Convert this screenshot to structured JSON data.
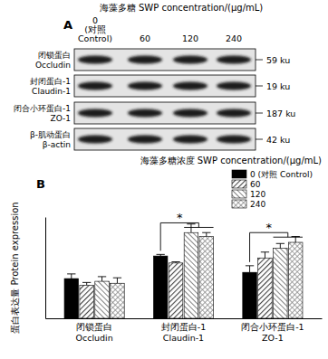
{
  "blot": {
    "panel_label": "A",
    "title": "海藻多糖 SWP concentration/(μg/mL)",
    "lanes": [
      [
        "0",
        "(对照",
        "Control)"
      ],
      [
        "60"
      ],
      [
        "120"
      ],
      [
        "240"
      ]
    ],
    "rows": [
      {
        "label": [
          "闭锁蛋白",
          "Occludin"
        ],
        "size": "59 ku"
      },
      {
        "label": [
          "封闭蛋白-1",
          "Claudin-1"
        ],
        "size": "19 ku"
      },
      {
        "label": [
          "闭合小环蛋白-1",
          "ZO-1"
        ],
        "size": "187 ku"
      },
      {
        "label": [
          "β-肌动蛋白",
          "β-actin"
        ],
        "size": "42 ku"
      }
    ]
  },
  "chart_data": {
    "type": "bar",
    "panel_label": "B",
    "y_label": "蛋白表达量 Protein expression",
    "legend_title": "海藻多糖浓度 SWP concentration/(μg/mL)",
    "categories": [
      "闭锁蛋白 Occludin",
      "封闭蛋白-1 Claudin-1",
      "闭合小环蛋白-1 ZO-1"
    ],
    "series": [
      {
        "name": "0 (对照 Control)",
        "color": "#000000",
        "values": [
          1.02,
          1.6,
          1.18
        ],
        "errors": [
          0.12,
          0.04,
          0.17
        ]
      },
      {
        "name": "60",
        "color": "#444444",
        "values": [
          0.85,
          1.42,
          1.55
        ],
        "errors": [
          0.07,
          0.03,
          0.15
        ]
      },
      {
        "name": "120",
        "color": "#666666",
        "values": [
          0.95,
          2.2,
          1.8
        ],
        "errors": [
          0.12,
          0.22,
          0.12
        ]
      },
      {
        "name": "240",
        "color": "#888888",
        "values": [
          0.9,
          2.1,
          1.95
        ],
        "errors": [
          0.14,
          0.1,
          0.15
        ]
      }
    ],
    "annotations": [
      {
        "text": "*",
        "x": "封闭蛋白-1 Claudin-1",
        "y": 2.45
      },
      {
        "text": "*",
        "x": "闭合小环蛋白-1 ZO-1",
        "y": 2.2
      }
    ],
    "ylim": [
      0,
      2.6
    ],
    "tick_labels": "x",
    "legend": "top-right",
    "grid": false
  }
}
